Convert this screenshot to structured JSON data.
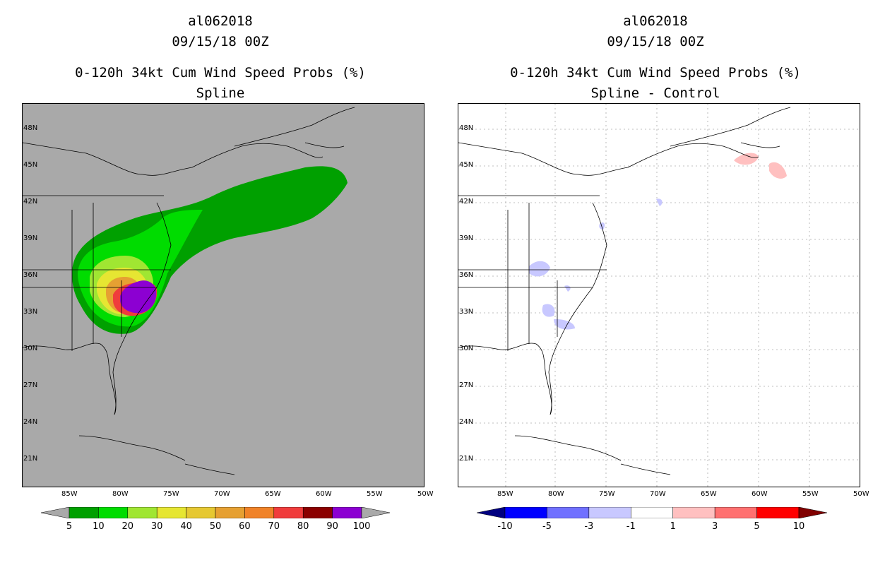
{
  "left_panel": {
    "storm_id": "al062018",
    "datetime": "09/15/18 00Z",
    "product": "0-120h 34kt Cum Wind Speed Probs (%)",
    "subtitle": "Spline",
    "background_color": "#a9a9a9"
  },
  "right_panel": {
    "storm_id": "al062018",
    "datetime": "09/15/18 00Z",
    "product": "0-120h 34kt Cum Wind Speed Probs (%)",
    "subtitle": "Spline - Control",
    "background_color": "#ffffff"
  },
  "latitude_labels": [
    "48N",
    "45N",
    "42N",
    "39N",
    "36N",
    "33N",
    "30N",
    "27N",
    "24N",
    "21N"
  ],
  "longitude_labels": [
    "85W",
    "80W",
    "75W",
    "70W",
    "65W",
    "60W",
    "55W",
    "50W"
  ],
  "left_colorbar": {
    "labels": [
      "5",
      "10",
      "20",
      "30",
      "40",
      "50",
      "60",
      "70",
      "80",
      "90",
      "100"
    ],
    "colors": [
      "#a9a9a9",
      "#00a000",
      "#00dc00",
      "#a0e632",
      "#e6e632",
      "#e6c832",
      "#e6a032",
      "#f08228",
      "#f03c3c",
      "#8b0000",
      "#8c00d2",
      "#a9a9a9"
    ]
  },
  "right_colorbar": {
    "labels": [
      "-10",
      "-5",
      "-3",
      "-1",
      "1",
      "3",
      "5",
      "10"
    ],
    "colors": [
      "#000080",
      "#0000ff",
      "#7070ff",
      "#c8c8ff",
      "#ffffff",
      "#ffc0c0",
      "#ff7070",
      "#ff0000",
      "#800000"
    ]
  }
}
